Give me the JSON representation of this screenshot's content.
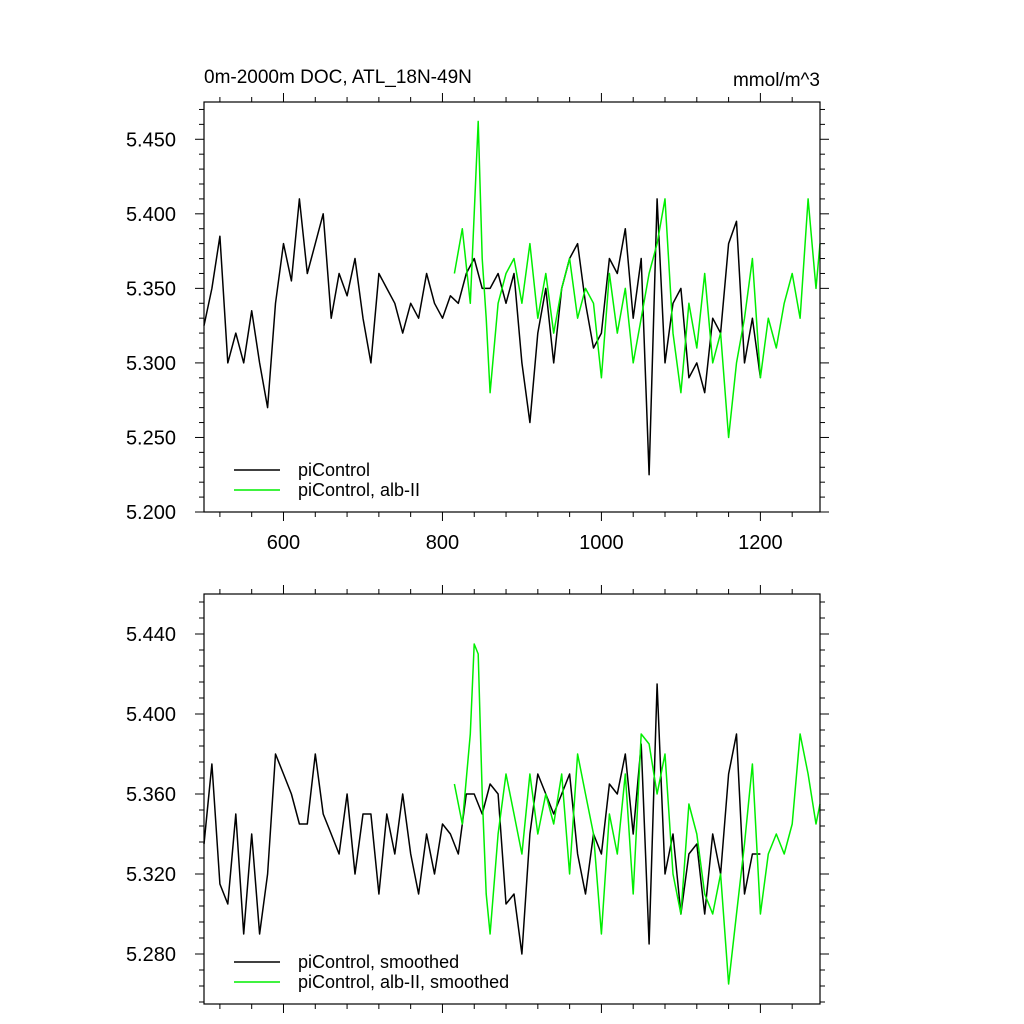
{
  "chart_data": [
    {
      "type": "line",
      "title": "0m-2000m DOC, ATL_18N-49N",
      "units": "mmol/m^3",
      "xlim": [
        500,
        1275
      ],
      "ylim": [
        5.2,
        5.475
      ],
      "x_ticks": [
        600,
        800,
        1000,
        1200
      ],
      "x_tick_labels": [
        "600",
        "800",
        "1000",
        "1200"
      ],
      "y_ticks": [
        5.2,
        5.25,
        5.3,
        5.35,
        5.4,
        5.45
      ],
      "y_tick_labels": [
        "5.200",
        "5.250",
        "5.300",
        "5.350",
        "5.400",
        "5.450"
      ],
      "legend_position": "bottom-left",
      "series": [
        {
          "name": "piControl",
          "color": "#000000",
          "x": [
            500,
            510,
            520,
            530,
            540,
            550,
            560,
            570,
            580,
            590,
            600,
            610,
            620,
            630,
            640,
            650,
            660,
            670,
            680,
            690,
            700,
            710,
            720,
            730,
            740,
            750,
            760,
            770,
            780,
            790,
            800,
            810,
            820,
            830,
            840,
            850,
            860,
            870,
            880,
            890,
            900,
            910,
            920,
            930,
            940,
            950,
            960,
            970,
            980,
            990,
            1000,
            1010,
            1020,
            1030,
            1040,
            1050,
            1060,
            1070,
            1080,
            1090,
            1100,
            1110,
            1120,
            1130,
            1140,
            1150,
            1160,
            1170,
            1180,
            1190,
            1200
          ],
          "values": [
            5.325,
            5.35,
            5.385,
            5.3,
            5.32,
            5.3,
            5.335,
            5.3,
            5.27,
            5.34,
            5.38,
            5.355,
            5.41,
            5.36,
            5.38,
            5.4,
            5.33,
            5.36,
            5.345,
            5.37,
            5.33,
            5.3,
            5.36,
            5.35,
            5.34,
            5.32,
            5.34,
            5.33,
            5.36,
            5.34,
            5.33,
            5.345,
            5.34,
            5.36,
            5.37,
            5.35,
            5.35,
            5.36,
            5.34,
            5.36,
            5.3,
            5.26,
            5.32,
            5.35,
            5.3,
            5.35,
            5.37,
            5.38,
            5.34,
            5.31,
            5.32,
            5.37,
            5.36,
            5.39,
            5.33,
            5.37,
            5.225,
            5.41,
            5.3,
            5.34,
            5.35,
            5.29,
            5.3,
            5.28,
            5.33,
            5.32,
            5.38,
            5.395,
            5.3,
            5.33,
            5.29
          ]
        },
        {
          "name": "piControl, alb-II",
          "color": "#00ee00",
          "x": [
            815,
            825,
            835,
            840,
            845,
            850,
            855,
            860,
            870,
            880,
            890,
            900,
            910,
            920,
            930,
            940,
            950,
            960,
            970,
            980,
            990,
            1000,
            1010,
            1020,
            1030,
            1040,
            1050,
            1060,
            1070,
            1080,
            1090,
            1100,
            1110,
            1120,
            1130,
            1140,
            1150,
            1160,
            1170,
            1180,
            1190,
            1200,
            1210,
            1220,
            1230,
            1240,
            1250,
            1260,
            1270,
            1275
          ],
          "values": [
            5.36,
            5.39,
            5.34,
            5.4,
            5.462,
            5.37,
            5.33,
            5.28,
            5.34,
            5.36,
            5.37,
            5.34,
            5.38,
            5.33,
            5.36,
            5.32,
            5.35,
            5.37,
            5.33,
            5.35,
            5.34,
            5.29,
            5.36,
            5.32,
            5.35,
            5.3,
            5.33,
            5.36,
            5.38,
            5.41,
            5.32,
            5.28,
            5.34,
            5.31,
            5.36,
            5.3,
            5.32,
            5.25,
            5.3,
            5.33,
            5.37,
            5.29,
            5.33,
            5.31,
            5.34,
            5.36,
            5.33,
            5.41,
            5.35,
            5.38
          ]
        }
      ]
    },
    {
      "type": "line",
      "title": "",
      "xlim": [
        500,
        1275
      ],
      "ylim": [
        5.255,
        5.46
      ],
      "x_ticks": [
        600,
        800,
        1000,
        1200
      ],
      "x_tick_labels": [],
      "y_ticks": [
        5.28,
        5.32,
        5.36,
        5.4,
        5.44
      ],
      "y_tick_labels": [
        "5.280",
        "5.320",
        "5.360",
        "5.400",
        "5.440"
      ],
      "legend_position": "bottom-left",
      "series": [
        {
          "name": "piControl, smoothed",
          "color": "#000000",
          "x": [
            500,
            510,
            520,
            530,
            540,
            550,
            560,
            570,
            580,
            590,
            600,
            610,
            620,
            630,
            640,
            650,
            660,
            670,
            680,
            690,
            700,
            710,
            720,
            730,
            740,
            750,
            760,
            770,
            780,
            790,
            800,
            810,
            820,
            830,
            840,
            850,
            860,
            870,
            880,
            890,
            900,
            910,
            920,
            930,
            940,
            950,
            960,
            970,
            980,
            990,
            1000,
            1010,
            1020,
            1030,
            1040,
            1050,
            1060,
            1070,
            1080,
            1090,
            1100,
            1110,
            1120,
            1130,
            1140,
            1150,
            1160,
            1170,
            1180,
            1190,
            1200
          ],
          "values": [
            5.335,
            5.375,
            5.315,
            5.305,
            5.35,
            5.29,
            5.34,
            5.29,
            5.32,
            5.38,
            5.37,
            5.36,
            5.345,
            5.345,
            5.38,
            5.35,
            5.34,
            5.33,
            5.36,
            5.32,
            5.35,
            5.35,
            5.31,
            5.35,
            5.33,
            5.36,
            5.33,
            5.31,
            5.34,
            5.32,
            5.345,
            5.34,
            5.33,
            5.36,
            5.36,
            5.35,
            5.365,
            5.36,
            5.305,
            5.31,
            5.28,
            5.34,
            5.37,
            5.36,
            5.35,
            5.36,
            5.37,
            5.33,
            5.31,
            5.34,
            5.33,
            5.365,
            5.36,
            5.38,
            5.34,
            5.385,
            5.285,
            5.415,
            5.32,
            5.34,
            5.3,
            5.33,
            5.335,
            5.3,
            5.34,
            5.32,
            5.37,
            5.39,
            5.31,
            5.33,
            5.33
          ]
        },
        {
          "name": "piControl, alb-II, smoothed",
          "color": "#00ee00",
          "x": [
            815,
            825,
            835,
            840,
            845,
            850,
            855,
            860,
            870,
            880,
            890,
            900,
            910,
            920,
            930,
            940,
            950,
            960,
            970,
            980,
            990,
            1000,
            1010,
            1020,
            1030,
            1040,
            1050,
            1060,
            1070,
            1080,
            1090,
            1100,
            1110,
            1120,
            1130,
            1140,
            1150,
            1160,
            1170,
            1180,
            1190,
            1200,
            1210,
            1220,
            1230,
            1240,
            1250,
            1260,
            1270,
            1275
          ],
          "values": [
            5.365,
            5.345,
            5.39,
            5.435,
            5.43,
            5.36,
            5.31,
            5.29,
            5.34,
            5.37,
            5.35,
            5.33,
            5.37,
            5.34,
            5.36,
            5.345,
            5.37,
            5.32,
            5.38,
            5.36,
            5.34,
            5.29,
            5.35,
            5.33,
            5.37,
            5.31,
            5.39,
            5.385,
            5.36,
            5.38,
            5.32,
            5.3,
            5.355,
            5.34,
            5.31,
            5.3,
            5.32,
            5.265,
            5.3,
            5.335,
            5.375,
            5.3,
            5.33,
            5.34,
            5.33,
            5.345,
            5.39,
            5.37,
            5.345,
            5.355
          ]
        }
      ]
    }
  ]
}
